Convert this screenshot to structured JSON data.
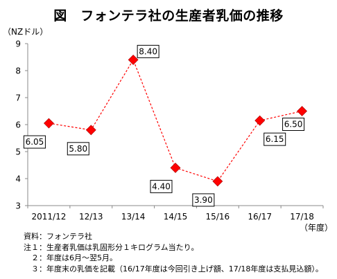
{
  "title": "図　フォンテラ社の生産者乳価の推移",
  "chart_data": {
    "type": "line",
    "title": "図　フォンテラ社の生産者乳価の推移",
    "y_unit_label": "（NZドル）",
    "x_unit_label": "（年度）",
    "categories": [
      "2011/12",
      "12/13",
      "13/14",
      "14/15",
      "15/16",
      "16/17",
      "17/18"
    ],
    "series": [
      {
        "values": [
          6.05,
          5.8,
          8.4,
          4.4,
          3.9,
          6.15,
          6.5
        ],
        "labels": [
          "6.05",
          "5.80",
          "8.40",
          "4.40",
          "3.90",
          "6.15",
          "6.50"
        ],
        "color": "#ff0000",
        "marker": "diamond",
        "line_style": "dashed"
      }
    ],
    "ylim": [
      3,
      9
    ],
    "yticks": [
      "3",
      "4",
      "5",
      "6",
      "7",
      "8",
      "9"
    ],
    "grid": false,
    "legend": "none"
  },
  "notes": {
    "source": "資料：フォンテラ社",
    "note1": "注１：生産者乳価は乳固形分１キログラム当たり。",
    "note2": "　２：年度は6月～翌5月。",
    "note3": "　３：年度末の乳価を記載（16/17年度は今回引き上げ額、17/18年度は支払見込額）。"
  }
}
